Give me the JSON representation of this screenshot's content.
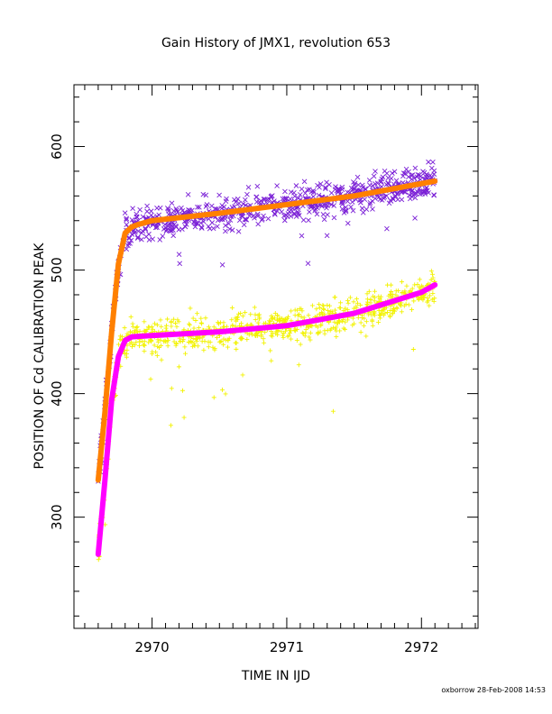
{
  "chart_data": {
    "type": "scatter",
    "title": "Gain History of JMX1, revolution 653",
    "xlabel": "TIME IN IJD",
    "ylabel": "POSITION OF Cd CALIBRATION PEAK",
    "xlim": [
      2969.42,
      2972.42
    ],
    "ylim": [
      210,
      650
    ],
    "xticks": [
      2970,
      2971,
      2972
    ],
    "yticks": [
      300,
      400,
      500,
      600
    ],
    "grid": false,
    "footer": "oxborrow 28-Feb-2008 14:53",
    "series": [
      {
        "marker": "x",
        "color": "#7a1fd6",
        "x_range": [
          2969.6,
          2972.1
        ],
        "count": 720,
        "spread": 14,
        "fit": {
          "x": [
            2969.6,
            2969.65,
            2969.7,
            2969.75,
            2969.8,
            2969.85,
            2969.9,
            2970.0,
            2970.5,
            2971.0,
            2971.5,
            2972.0,
            2972.1
          ],
          "y": [
            330,
            385,
            450,
            505,
            530,
            535,
            537,
            540,
            546,
            553,
            560,
            570,
            572
          ]
        }
      },
      {
        "marker": "+",
        "color": "#f2f200",
        "x_range": [
          2969.6,
          2972.1
        ],
        "count": 820,
        "spread": 14,
        "fit": {
          "x": [
            2969.6,
            2969.65,
            2969.7,
            2969.75,
            2969.8,
            2969.85,
            2970.0,
            2970.5,
            2971.0,
            2971.5,
            2972.0,
            2972.1
          ],
          "y": [
            270,
            330,
            395,
            430,
            443,
            446,
            447,
            450,
            455,
            465,
            482,
            488
          ]
        }
      },
      {
        "name": "",
        "style": "fit-curve",
        "color": "#ff8000",
        "x": [
          2969.6,
          2969.65,
          2969.7,
          2969.75,
          2969.8,
          2969.85,
          2969.9,
          2970.0,
          2970.5,
          2971.0,
          2971.5,
          2972.0,
          2972.1
        ],
        "y": [
          330,
          385,
          450,
          505,
          530,
          535,
          537,
          540,
          546,
          553,
          560,
          570,
          572
        ]
      },
      {
        "name": "",
        "style": "fit-curve",
        "color": "#ff00ff",
        "x": [
          2969.6,
          2969.65,
          2969.7,
          2969.75,
          2969.8,
          2969.85,
          2970.0,
          2970.5,
          2971.0,
          2971.5,
          2972.0,
          2972.1
        ],
        "y": [
          270,
          330,
          395,
          430,
          443,
          446,
          447,
          450,
          455,
          465,
          482,
          488
        ]
      }
    ]
  }
}
